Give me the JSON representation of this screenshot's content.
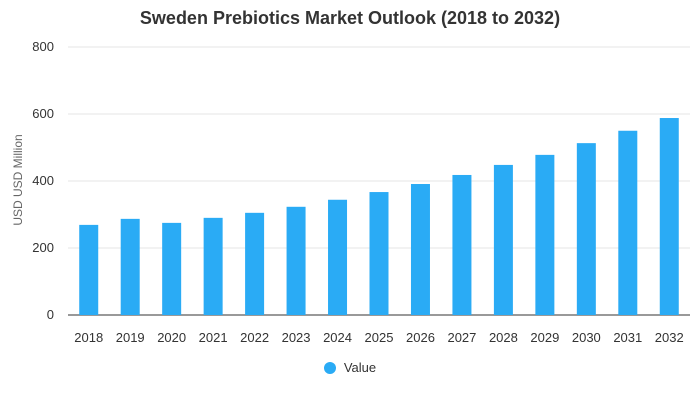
{
  "chart_data": {
    "type": "bar",
    "title": "Sweden Prebiotics Market Outlook (2018 to 2032)",
    "xlabel": "",
    "ylabel": "USD USD Million",
    "ylim": [
      0,
      800
    ],
    "yticks": [
      0,
      200,
      400,
      600,
      800
    ],
    "categories": [
      "2018",
      "2019",
      "2020",
      "2021",
      "2022",
      "2023",
      "2024",
      "2025",
      "2026",
      "2027",
      "2028",
      "2029",
      "2030",
      "2031",
      "2032"
    ],
    "series": [
      {
        "name": "Value",
        "color": "#2aabf5",
        "values": [
          269,
          287,
          275,
          290,
          305,
          323,
          344,
          367,
          391,
          418,
          448,
          478,
          513,
          550,
          588
        ]
      }
    ],
    "grid": true,
    "legend_position": "bottom"
  }
}
